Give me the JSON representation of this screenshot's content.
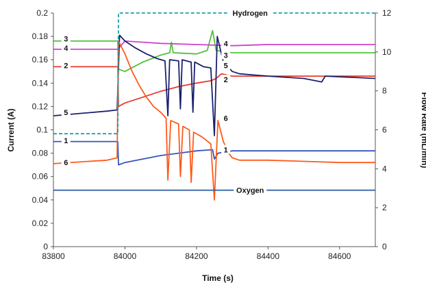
{
  "chart_data": {
    "type": "line",
    "title": "",
    "xlabel": "Time (s)",
    "ylabel": "Current (A)",
    "y2label": "Flow Rate (mL/min)",
    "xlim": [
      83800,
      84700
    ],
    "ylim": [
      0,
      0.2
    ],
    "y2lim": [
      0,
      12
    ],
    "xticks": [
      "83800",
      "84000",
      "84200",
      "84400",
      "84600"
    ],
    "yticks": [
      "0",
      "0.02",
      "0.04",
      "0.06",
      "0.08",
      "0.1",
      "0.12",
      "0.14",
      "0.16",
      "0.18",
      "0.2"
    ],
    "y2ticks": [
      "0",
      "2",
      "4",
      "6",
      "8",
      "10",
      "12"
    ],
    "grid": false,
    "series": [
      {
        "name": "3",
        "color": "#4fc23a",
        "axis": "left",
        "points": [
          [
            83800,
            0.176
          ],
          [
            83980,
            0.176
          ],
          [
            83982,
            0.152
          ],
          [
            84000,
            0.15
          ],
          [
            84050,
            0.158
          ],
          [
            84100,
            0.164
          ],
          [
            84125,
            0.166
          ],
          [
            84130,
            0.175
          ],
          [
            84135,
            0.166
          ],
          [
            84200,
            0.165
          ],
          [
            84230,
            0.168
          ],
          [
            84245,
            0.185
          ],
          [
            84255,
            0.168
          ],
          [
            84300,
            0.166
          ],
          [
            84700,
            0.166
          ]
        ]
      },
      {
        "name": "4",
        "color": "#cc44cc",
        "axis": "left",
        "points": [
          [
            83800,
            0.169
          ],
          [
            83980,
            0.169
          ],
          [
            84000,
            0.176
          ],
          [
            84050,
            0.175
          ],
          [
            84100,
            0.174
          ],
          [
            84200,
            0.173
          ],
          [
            84300,
            0.172
          ],
          [
            84400,
            0.173
          ],
          [
            84700,
            0.173
          ]
        ]
      },
      {
        "name": "2",
        "color": "#e8392b",
        "axis": "left",
        "points": [
          [
            83800,
            0.154
          ],
          [
            83980,
            0.154
          ],
          [
            83982,
            0.12
          ],
          [
            84000,
            0.123
          ],
          [
            84050,
            0.128
          ],
          [
            84100,
            0.133
          ],
          [
            84150,
            0.137
          ],
          [
            84200,
            0.14
          ],
          [
            84240,
            0.142
          ],
          [
            84255,
            0.144
          ],
          [
            84270,
            0.148
          ],
          [
            84300,
            0.146
          ],
          [
            84700,
            0.146
          ]
        ]
      },
      {
        "name": "5",
        "color": "#1a1f6e",
        "axis": "left",
        "points": [
          [
            83800,
            0.112
          ],
          [
            83950,
            0.116
          ],
          [
            83978,
            0.117
          ],
          [
            83985,
            0.181
          ],
          [
            84000,
            0.176
          ],
          [
            84030,
            0.17
          ],
          [
            84060,
            0.165
          ],
          [
            84090,
            0.161
          ],
          [
            84112,
            0.159
          ],
          [
            84120,
            0.112
          ],
          [
            84125,
            0.16
          ],
          [
            84150,
            0.159
          ],
          [
            84155,
            0.118
          ],
          [
            84160,
            0.16
          ],
          [
            84185,
            0.158
          ],
          [
            84190,
            0.115
          ],
          [
            84195,
            0.158
          ],
          [
            84220,
            0.154
          ],
          [
            84240,
            0.153
          ],
          [
            84250,
            0.095
          ],
          [
            84258,
            0.18
          ],
          [
            84275,
            0.158
          ],
          [
            84300,
            0.15
          ],
          [
            84320,
            0.148
          ],
          [
            84400,
            0.146
          ],
          [
            84500,
            0.144
          ],
          [
            84550,
            0.141
          ],
          [
            84560,
            0.146
          ],
          [
            84700,
            0.144
          ]
        ]
      },
      {
        "name": "1",
        "color": "#3355bb",
        "axis": "left",
        "points": [
          [
            83800,
            0.09
          ],
          [
            83980,
            0.09
          ],
          [
            83982,
            0.07
          ],
          [
            84000,
            0.072
          ],
          [
            84050,
            0.075
          ],
          [
            84100,
            0.078
          ],
          [
            84150,
            0.08
          ],
          [
            84200,
            0.082
          ],
          [
            84245,
            0.083
          ],
          [
            84250,
            0.075
          ],
          [
            84260,
            0.08
          ],
          [
            84300,
            0.082
          ],
          [
            84700,
            0.082
          ]
        ]
      },
      {
        "name": "6",
        "color": "#ff5a1a",
        "axis": "left",
        "points": [
          [
            83800,
            0.071
          ],
          [
            83950,
            0.074
          ],
          [
            83978,
            0.076
          ],
          [
            83982,
            0.176
          ],
          [
            84000,
            0.165
          ],
          [
            84020,
            0.15
          ],
          [
            84040,
            0.138
          ],
          [
            84060,
            0.128
          ],
          [
            84080,
            0.12
          ],
          [
            84100,
            0.115
          ],
          [
            84115,
            0.11
          ],
          [
            84120,
            0.057
          ],
          [
            84128,
            0.108
          ],
          [
            84150,
            0.105
          ],
          [
            84155,
            0.06
          ],
          [
            84162,
            0.103
          ],
          [
            84180,
            0.1
          ],
          [
            84185,
            0.055
          ],
          [
            84192,
            0.098
          ],
          [
            84215,
            0.094
          ],
          [
            84240,
            0.088
          ],
          [
            84250,
            0.04
          ],
          [
            84260,
            0.108
          ],
          [
            84275,
            0.09
          ],
          [
            84290,
            0.08
          ],
          [
            84300,
            0.076
          ],
          [
            84320,
            0.074
          ],
          [
            84400,
            0.074
          ],
          [
            84500,
            0.073
          ],
          [
            84600,
            0.072
          ],
          [
            84700,
            0.072
          ]
        ]
      },
      {
        "name": "Hydrogen",
        "color": "#1aa0a8",
        "axis": "right",
        "dashed": true,
        "points": [
          [
            83800,
            5.8
          ],
          [
            83980,
            5.8
          ],
          [
            83982,
            12.0
          ],
          [
            84700,
            12.0
          ]
        ]
      },
      {
        "name": "Oxygen",
        "color": "#2a5aa0",
        "axis": "right",
        "points": [
          [
            83800,
            2.9
          ],
          [
            84700,
            2.9
          ]
        ]
      }
    ],
    "annotations": [
      {
        "text": "Hydrogen",
        "x": 84350,
        "y2": 12.0
      },
      {
        "text": "Oxygen",
        "x": 84350,
        "y2": 2.9
      },
      {
        "text": "3",
        "x": 83835,
        "y": 0.178
      },
      {
        "text": "4",
        "x": 83835,
        "y": 0.17
      },
      {
        "text": "2",
        "x": 83835,
        "y": 0.155
      },
      {
        "text": "5",
        "x": 83835,
        "y": 0.115
      },
      {
        "text": "1",
        "x": 83835,
        "y": 0.091
      },
      {
        "text": "6",
        "x": 83835,
        "y": 0.072
      },
      {
        "text": "4",
        "x": 84282,
        "y": 0.174
      },
      {
        "text": "3",
        "x": 84282,
        "y": 0.164
      },
      {
        "text": "5",
        "x": 84282,
        "y": 0.155
      },
      {
        "text": "2",
        "x": 84282,
        "y": 0.143
      },
      {
        "text": "6",
        "x": 84282,
        "y": 0.11
      },
      {
        "text": "1",
        "x": 84282,
        "y": 0.083
      }
    ]
  }
}
